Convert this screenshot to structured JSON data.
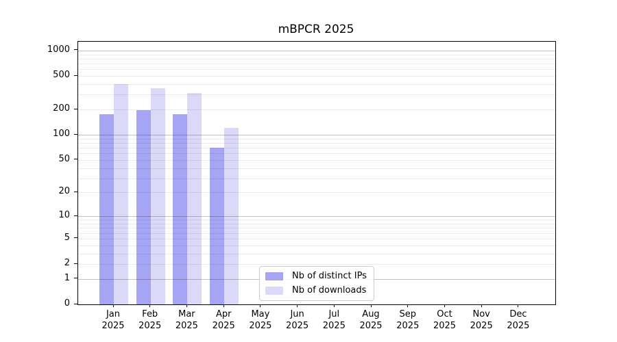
{
  "chart_data": {
    "type": "bar",
    "title": "mBPCR 2025",
    "categories": [
      "Jan",
      "Feb",
      "Mar",
      "Apr",
      "May",
      "Jun",
      "Jul",
      "Aug",
      "Sep",
      "Oct",
      "Nov",
      "Dec"
    ],
    "year": "2025",
    "series": [
      {
        "name": "Nb of distinct IPs",
        "color": "#a5a5f4",
        "values": [
          175,
          195,
          175,
          70,
          0,
          0,
          0,
          0,
          0,
          0,
          0,
          0
        ]
      },
      {
        "name": "Nb of downloads",
        "color": "#dadaf8",
        "values": [
          400,
          360,
          315,
          120,
          0,
          0,
          0,
          0,
          0,
          0,
          0,
          0
        ]
      }
    ],
    "xlabel": "",
    "ylabel": "",
    "yscale": "log10(value+1)",
    "y_ticks": [
      0,
      1,
      2,
      5,
      10,
      20,
      50,
      100,
      200,
      500,
      1000
    ],
    "ylim": [
      0,
      1270
    ],
    "grid": "horizontal, major (1,10,100,1000) + minor (2-9 per decade), drawn over bars",
    "legend_position": "inside plot, lower center-left"
  }
}
